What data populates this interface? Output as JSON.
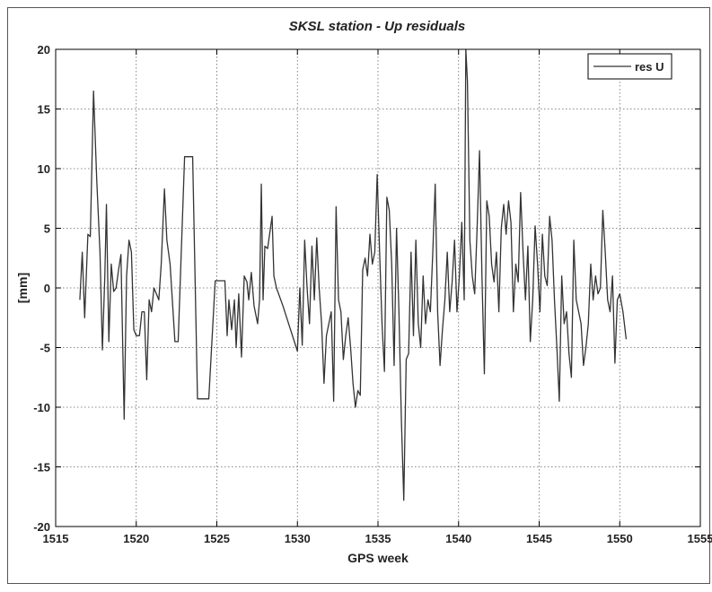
{
  "chart_data": {
    "type": "line",
    "title": "SKSL station - Up residuals",
    "xlabel": "GPS week",
    "ylabel": "[mm]",
    "xlim": [
      1515,
      1555
    ],
    "ylim": [
      -20,
      20
    ],
    "xticks": [
      1515,
      1520,
      1525,
      1530,
      1535,
      1540,
      1545,
      1550,
      1555
    ],
    "yticks": [
      -20,
      -15,
      -10,
      -5,
      0,
      5,
      10,
      15,
      20
    ],
    "grid": true,
    "legend": "upper right",
    "x": [
      1516.5,
      1516.65,
      1516.8,
      1517.0,
      1517.15,
      1517.35,
      1517.55,
      1517.75,
      1517.9,
      1518.05,
      1518.15,
      1518.3,
      1518.45,
      1518.6,
      1518.75,
      1518.9,
      1519.05,
      1519.25,
      1519.4,
      1519.55,
      1519.7,
      1519.85,
      1520.0,
      1520.2,
      1520.35,
      1520.5,
      1520.65,
      1520.8,
      1520.95,
      1521.1,
      1521.25,
      1521.4,
      1521.55,
      1521.75,
      1521.9,
      1522.1,
      1522.4,
      1522.6,
      1523.0,
      1523.5,
      1523.8,
      1524.5,
      1524.9,
      1525.5,
      1525.64,
      1525.75,
      1525.92,
      1526.09,
      1526.2,
      1526.36,
      1526.53,
      1526.7,
      1526.87,
      1526.98,
      1527.14,
      1527.31,
      1527.53,
      1527.65,
      1527.76,
      1527.87,
      1527.98,
      1528.15,
      1528.43,
      1528.54,
      1528.7,
      1529.1,
      1530.0,
      1530.15,
      1530.3,
      1530.45,
      1530.6,
      1530.75,
      1530.9,
      1531.05,
      1531.2,
      1531.35,
      1531.5,
      1531.65,
      1531.8,
      1531.95,
      1532.1,
      1532.25,
      1532.4,
      1532.55,
      1532.7,
      1532.85,
      1533.0,
      1533.15,
      1533.3,
      1533.45,
      1533.6,
      1533.75,
      1533.9,
      1534.05,
      1534.2,
      1534.35,
      1534.5,
      1534.65,
      1534.8,
      1534.95,
      1535.1,
      1535.25,
      1535.4,
      1535.55,
      1535.7,
      1535.85,
      1536.0,
      1536.15,
      1536.3,
      1536.45,
      1536.6,
      1536.75,
      1536.9,
      1537.05,
      1537.2,
      1537.35,
      1537.5,
      1537.65,
      1537.8,
      1537.95,
      1538.1,
      1538.25,
      1538.4,
      1538.55,
      1538.7,
      1538.85,
      1539.0,
      1539.15,
      1539.3,
      1539.45,
      1539.6,
      1539.75,
      1539.9,
      1540.05,
      1540.2,
      1540.35,
      1540.45,
      1540.55,
      1540.7,
      1540.85,
      1541.0,
      1541.15,
      1541.3,
      1541.45,
      1541.6,
      1541.75,
      1541.9,
      1542.05,
      1542.2,
      1542.35,
      1542.5,
      1542.65,
      1542.8,
      1542.95,
      1543.1,
      1543.25,
      1543.4,
      1543.55,
      1543.7,
      1543.85,
      1544.0,
      1544.15,
      1544.3,
      1544.45,
      1544.6,
      1544.75,
      1544.9,
      1545.05,
      1545.2,
      1545.35,
      1545.5,
      1545.65,
      1545.8,
      1545.95,
      1546.1,
      1546.25,
      1546.4,
      1546.55,
      1546.7,
      1546.85,
      1547.0,
      1547.15,
      1547.3,
      1547.45,
      1547.6,
      1547.75,
      1547.9,
      1548.05,
      1548.2,
      1548.35,
      1548.5,
      1548.65,
      1548.8,
      1548.95,
      1549.1,
      1549.25,
      1549.4,
      1549.55,
      1549.7,
      1549.85,
      1550.0,
      1550.2,
      1550.4
    ],
    "series": [
      {
        "name": "res U",
        "color": "#333333",
        "values": [
          -1,
          3,
          -2.5,
          4.5,
          4.3,
          16.5,
          9,
          3,
          -5.2,
          1,
          7,
          -4.5,
          2,
          -0.3,
          0,
          1.5,
          2.8,
          -11,
          1,
          4,
          3,
          -3.5,
          -4,
          -4,
          -2,
          -2,
          -7.7,
          -1,
          -2,
          0,
          -0.5,
          -1,
          2,
          8.3,
          4,
          2,
          -4.5,
          -4.5,
          11,
          11,
          -9.3,
          -9.3,
          0.6,
          0.6,
          -4,
          -1,
          -3.5,
          -1,
          -5,
          -0.5,
          -5.8,
          1,
          0.5,
          -1,
          1.3,
          -1.5,
          -3,
          -1,
          8.7,
          -1,
          3.5,
          3.3,
          6,
          1,
          0,
          -1.5,
          -5.3,
          0,
          -4.8,
          4,
          0,
          -3,
          3.5,
          -1,
          4.2,
          0,
          -3,
          -8,
          -4,
          -3,
          -2,
          -9.5,
          6.8,
          -1,
          -2,
          -6,
          -4,
          -2.5,
          -5,
          -8,
          -10,
          -8.6,
          -9,
          1.5,
          2.5,
          1,
          4.5,
          2,
          3,
          9.5,
          3,
          -3,
          -7,
          7.6,
          6.5,
          2,
          -6.5,
          5,
          -2,
          -11,
          -17.8,
          -6,
          -5.5,
          3,
          -4,
          4,
          -3,
          -5,
          1,
          -3,
          -1,
          -2,
          3,
          8.7,
          -2,
          -6.5,
          -3.5,
          -1,
          3,
          -2,
          0.5,
          4,
          -2,
          1,
          5.5,
          -1,
          20,
          17.3,
          4,
          1,
          -0.5,
          5,
          11.5,
          1,
          -7.2,
          7.3,
          6,
          2,
          0.5,
          3,
          -2,
          5,
          7,
          4.5,
          7.3,
          5.5,
          -2,
          2,
          0.5,
          8,
          3,
          -1,
          3.5,
          -4.5,
          -1,
          5.2,
          2,
          -2,
          4.5,
          1,
          0.2,
          6,
          4,
          -1,
          -5,
          -9.5,
          1,
          -3,
          -2,
          -5.5,
          -7.5,
          4,
          -1,
          -2,
          -3,
          -6.5,
          -5,
          -3,
          2,
          -1,
          1,
          -0.5,
          0,
          6.5,
          3,
          -1,
          -2,
          1,
          -6.3,
          -1,
          -0.5,
          -2,
          -4.3
        ]
      }
    ]
  }
}
